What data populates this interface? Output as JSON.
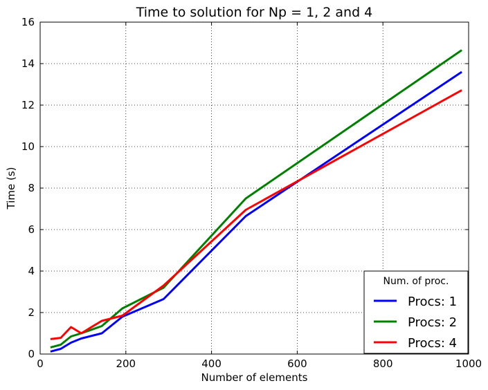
{
  "chart_data": {
    "type": "line",
    "title": "Time to solution for Np =  1, 2 and 4",
    "xlabel": "Number of elements",
    "ylabel": "Time (s)",
    "xlim": [
      0,
      1000
    ],
    "ylim": [
      0,
      16
    ],
    "xticks": [
      0,
      200,
      400,
      600,
      800,
      1000
    ],
    "yticks": [
      0,
      2,
      4,
      6,
      8,
      10,
      12,
      14,
      16
    ],
    "grid": true,
    "legend": {
      "title": "Num. of proc.",
      "placement": "lower-right"
    },
    "series": [
      {
        "name": "Procs: 1",
        "color": "#0000ff",
        "x": [
          24,
          48,
          72,
          96,
          144,
          192,
          288,
          480,
          984
        ],
        "y": [
          0.12,
          0.25,
          0.55,
          0.75,
          1.0,
          1.8,
          2.65,
          6.65,
          13.6
        ]
      },
      {
        "name": "Procs: 2",
        "color": "#008000",
        "x": [
          24,
          48,
          72,
          96,
          144,
          192,
          288,
          480,
          984
        ],
        "y": [
          0.32,
          0.45,
          0.85,
          1.0,
          1.35,
          2.2,
          3.2,
          7.5,
          14.65
        ]
      },
      {
        "name": "Procs: 4",
        "color": "#ff0000",
        "x": [
          24,
          48,
          72,
          96,
          144,
          192,
          288,
          480,
          984
        ],
        "y": [
          0.72,
          0.78,
          1.3,
          1.0,
          1.6,
          1.85,
          3.3,
          6.95,
          12.72
        ]
      }
    ]
  }
}
